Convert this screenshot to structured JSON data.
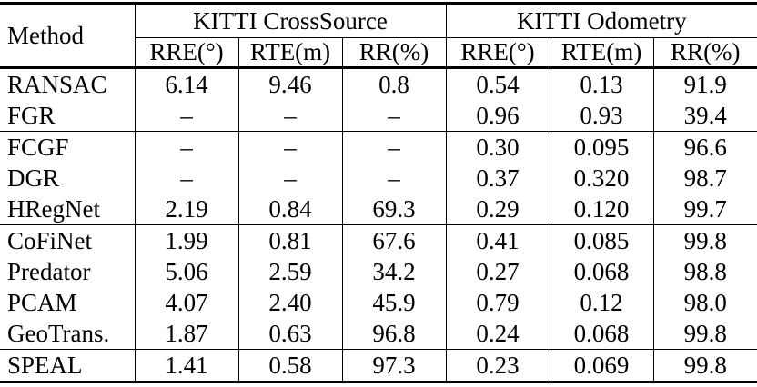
{
  "table": {
    "method_label": "Method",
    "group_headers": [
      {
        "label": "KITTI CrossSource"
      },
      {
        "label": "KITTI Odometry"
      }
    ],
    "metric_headers": [
      "RRE(°)",
      "RTE(m)",
      "RR(%)",
      "RRE(°)",
      "RTE(m)",
      "RR(%)"
    ],
    "row_groups": [
      {
        "rows": [
          {
            "method": "RANSAC",
            "values": [
              "6.14",
              "9.46",
              "0.8",
              "0.54",
              "0.13",
              "91.9"
            ]
          },
          {
            "method": "FGR",
            "values": [
              "–",
              "–",
              "–",
              "0.96",
              "0.93",
              "39.4"
            ]
          }
        ]
      },
      {
        "rows": [
          {
            "method": "FCGF",
            "values": [
              "–",
              "–",
              "–",
              "0.30",
              "0.095",
              "96.6"
            ]
          },
          {
            "method": "DGR",
            "values": [
              "–",
              "–",
              "–",
              "0.37",
              "0.320",
              "98.7"
            ]
          },
          {
            "method": "HRegNet",
            "values": [
              "2.19",
              "0.84",
              "69.3",
              "0.29",
              "0.120",
              "99.7"
            ]
          }
        ]
      },
      {
        "rows": [
          {
            "method": "CoFiNet",
            "values": [
              "1.99",
              "0.81",
              "67.6",
              "0.41",
              "0.085",
              "99.8"
            ]
          },
          {
            "method": "Predator",
            "values": [
              "5.06",
              "2.59",
              "34.2",
              "0.27",
              "0.068",
              "98.8"
            ]
          },
          {
            "method": "PCAM",
            "values": [
              "4.07",
              "2.40",
              "45.9",
              "0.79",
              "0.12",
              "98.0"
            ]
          },
          {
            "method": "GeoTrans.",
            "values": [
              "1.87",
              "0.63",
              "96.8",
              "0.24",
              "0.068",
              "99.8"
            ]
          }
        ]
      },
      {
        "rows": [
          {
            "method": "SPEAL",
            "values": [
              "1.41",
              "0.58",
              "97.3",
              "0.23",
              "0.069",
              "99.8"
            ]
          }
        ]
      }
    ],
    "colors": {
      "text": "#000000",
      "background": "#ffffff",
      "rule": "#000000"
    }
  }
}
